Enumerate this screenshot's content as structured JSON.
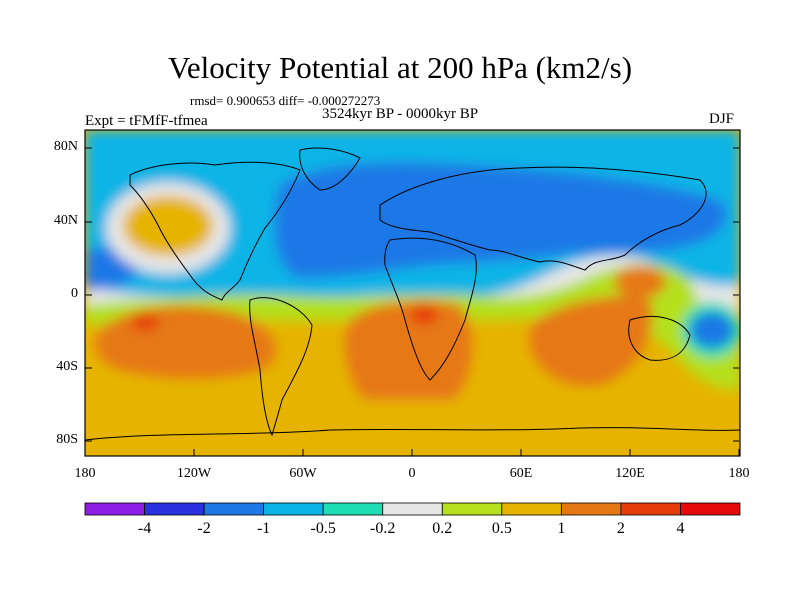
{
  "title": "Velocity Potential at 200 hPa (km2/s)",
  "stats": "rmsd= 0.900653 diff= -0.000272273",
  "period": "3524kyr BP - 0000kyr BP",
  "experiment": "Expt = tFMfF-tfmea",
  "season": "DJF",
  "y_ticks": [
    "80N",
    "40N",
    "0",
    "40S",
    "80S"
  ],
  "x_ticks": [
    "180",
    "120W",
    "60W",
    "0",
    "60E",
    "120E",
    "180"
  ],
  "colorbar": {
    "labels": [
      "-4",
      "-2",
      "-1",
      "-0.5",
      "-0.2",
      "0.2",
      "0.5",
      "1",
      "2",
      "4"
    ],
    "colors": [
      "#8c1ee6",
      "#2a32e0",
      "#1e78e6",
      "#0ab4e6",
      "#1edcb4",
      "#e6e6e6",
      "#b4e01e",
      "#e6b400",
      "#e67814",
      "#e63c0a",
      "#e60a0a"
    ]
  },
  "map_colors": {
    "neg2": "#1e78e6",
    "neg1": "#0ab4e6",
    "neg05": "#1edcb4",
    "neutral": "#e6e6e6",
    "pos02": "#b4e01e",
    "pos05": "#e6b400",
    "pos1": "#e67814",
    "pos2": "#e63c0a"
  }
}
